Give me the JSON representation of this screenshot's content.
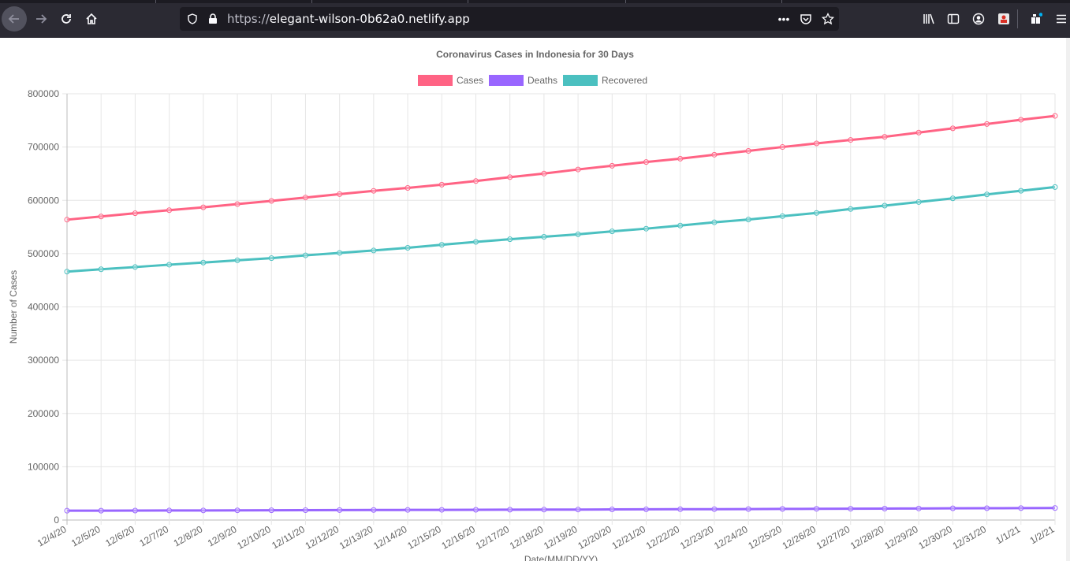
{
  "browser": {
    "url_prefix": "https://",
    "url_host": "elegant-wilson-0b62a0.netlify.app",
    "icons": [
      "back-arrow-icon",
      "forward-arrow-icon",
      "reload-icon",
      "home-icon",
      "shield-icon",
      "lock-icon",
      "more-icon",
      "pocket-icon",
      "star-icon",
      "library-icon",
      "sidebar-icon",
      "account-icon",
      "extension-icon",
      "puzzle-icon",
      "menu-icon"
    ]
  },
  "chart_data": {
    "type": "line",
    "title": "Coronavirus Cases in Indonesia for 30 Days",
    "xlabel": "Date(MM/DD/YY)",
    "ylabel": "Number of Cases",
    "ylim": [
      0,
      800000
    ],
    "yticks": [
      "800000",
      "700000",
      "600000",
      "500000",
      "400000",
      "300000",
      "200000",
      "100000",
      "0"
    ],
    "grid": true,
    "legend_position": "top",
    "categories": [
      "12/4/20",
      "12/5/20",
      "12/6/20",
      "12/7/20",
      "12/8/20",
      "12/9/20",
      "12/10/20",
      "12/11/20",
      "12/12/20",
      "12/13/20",
      "12/14/20",
      "12/15/20",
      "12/16/20",
      "12/17/20",
      "12/18/20",
      "12/19/20",
      "12/20/20",
      "12/21/20",
      "12/22/20",
      "12/23/20",
      "12/24/20",
      "12/25/20",
      "12/26/20",
      "12/27/20",
      "12/28/20",
      "12/29/20",
      "12/30/20",
      "12/31/20",
      "1/1/21",
      "1/2/21"
    ],
    "series": [
      {
        "name": "Cases",
        "color": "#ff6384",
        "values": [
          563680,
          569707,
          575796,
          581550,
          586842,
          592900,
          598933,
          605243,
          611631,
          617820,
          623309,
          629429,
          636154,
          643508,
          650197,
          657948,
          664930,
          671863,
          678125,
          685639,
          692838,
          700097,
          706837,
          713365,
          719219,
          727122,
          735124,
          743198,
          751270,
          758473
        ]
      },
      {
        "name": "Deaths",
        "color": "#9966ff",
        "values": [
          17479,
          17589,
          17740,
          17867,
          18000,
          18171,
          18336,
          18511,
          18653,
          18819,
          18956,
          19111,
          19248,
          19390,
          19514,
          19659,
          19880,
          20085,
          20257,
          20408,
          20589,
          20847,
          21078,
          21237,
          21452,
          21703,
          21944,
          22138,
          22329,
          22555
        ]
      },
      {
        "name": "Recovered",
        "color": "#4bc0c0",
        "values": [
          466178,
          470602,
          474771,
          479202,
          483217,
          487445,
          491524,
          496765,
          501376,
          505836,
          510957,
          516656,
          521984,
          526979,
          531657,
          536260,
          541811,
          546855,
          552722,
          558703,
          563980,
          570304,
          576390,
          583676,
          590063,
          596783,
          603741,
          611097,
          617936,
          624971
        ]
      }
    ]
  }
}
